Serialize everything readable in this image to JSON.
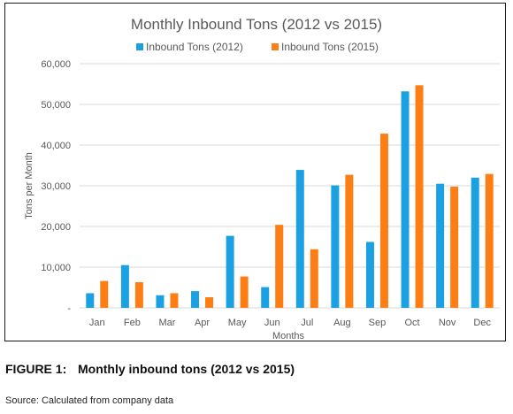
{
  "chart_data": {
    "type": "bar",
    "title": "Monthly Inbound Tons (2012 vs 2015)",
    "xlabel": "Months",
    "ylabel": "Tons per Month",
    "ylim": [
      0,
      60000
    ],
    "yticks": [
      "-",
      "10,000",
      "20,000",
      "30,000",
      "40,000",
      "50,000",
      "60,000"
    ],
    "categories": [
      "Jan",
      "Feb",
      "Mar",
      "Apr",
      "May",
      "Jun",
      "Jul",
      "Aug",
      "Sep",
      "Oct",
      "Nov",
      "Dec"
    ],
    "series": [
      {
        "name": "Inbound Tons (2012)",
        "color": "#1ba1e2",
        "values": [
          3600,
          10500,
          3100,
          4100,
          17700,
          5100,
          33900,
          30100,
          16200,
          53200,
          30500,
          32000
        ]
      },
      {
        "name": "Inbound Tons (2015)",
        "color": "#fd7e14",
        "values": [
          6600,
          6300,
          3600,
          2600,
          7700,
          20400,
          14400,
          32700,
          42800,
          54700,
          29800,
          32900
        ]
      }
    ],
    "legend_position": "top",
    "grid": "horizontal"
  },
  "caption": {
    "label": "FIGURE 1:",
    "text": "Monthly inbound tons (2012 vs 2015)"
  },
  "source": "Source: Calculated from company data"
}
